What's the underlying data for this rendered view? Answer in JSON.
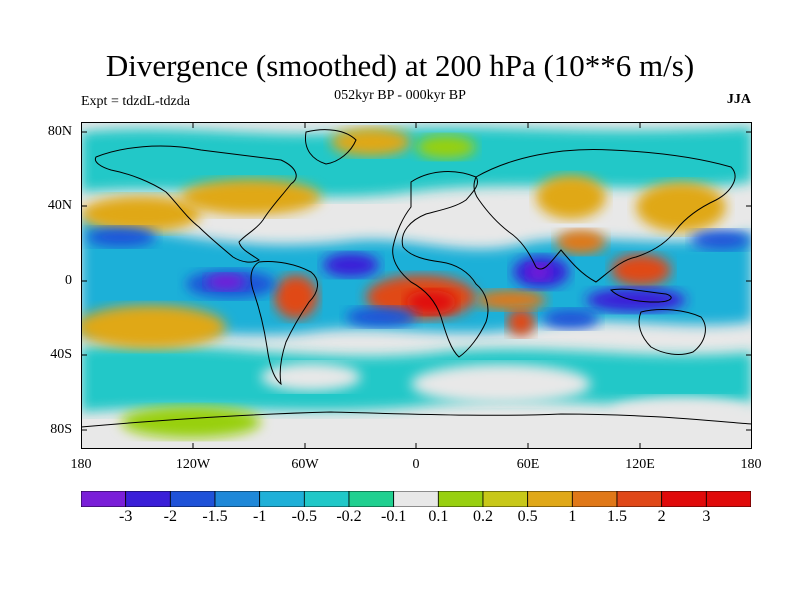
{
  "title": "Divergence (smoothed) at 200 hPa (10**6 m/s)",
  "subtitle": "052kyr BP - 000kyr BP",
  "experiment": "Expt = tdzdL-tdzda",
  "season": "JJA",
  "lat_labels": [
    "80N",
    "40N",
    "0",
    "40S",
    "80S"
  ],
  "lon_labels": [
    "180",
    "120W",
    "60W",
    "0",
    "60E",
    "120E",
    "180"
  ],
  "colorbar": {
    "labels": [
      "-3",
      "-2",
      "-1.5",
      "-1",
      "-0.5",
      "-0.2",
      "-0.1",
      "0.1",
      "0.2",
      "0.5",
      "1",
      "1.5",
      "2",
      "3"
    ],
    "colors": [
      "#7a1fd8",
      "#3a1fd8",
      "#1f52d8",
      "#1f88d8",
      "#1fb0d8",
      "#20c8c8",
      "#20d090",
      "#e8e8e8",
      "#98d010",
      "#c8c818",
      "#e0a818",
      "#e07818",
      "#e04818",
      "#e00a0a"
    ]
  },
  "land_shading": "#e8e8e8"
}
